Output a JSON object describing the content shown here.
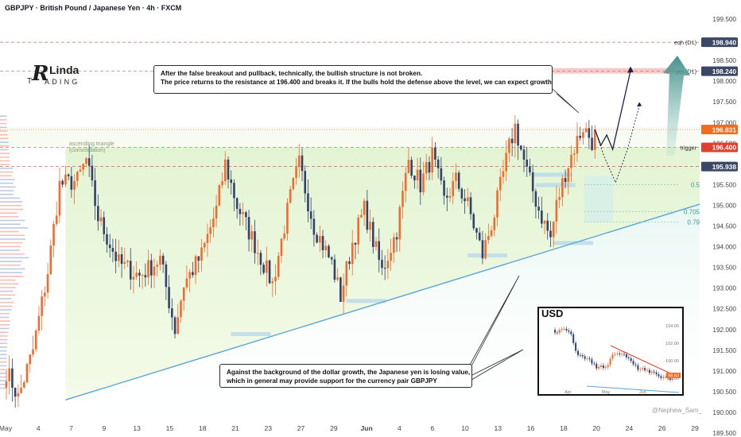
{
  "header": {
    "title": "GBPJPY · British Pound / Japanese Yen · 4h · FXCM"
  },
  "logo": {
    "mark": "R",
    "name_top": "Linda",
    "name_bottom": "ADING",
    "prefix": "T"
  },
  "annotations": {
    "top": {
      "line1": "After the false breakout and pullback, technically, the bullish structure is not broken.",
      "line2": "The price returns to the resistance at 196.400 and breaks it. If the bulls hold the defense above the level, we can expect growth"
    },
    "bottom": {
      "line1": "Against the background of the dollar growth, the Japanese yen is losing value,",
      "line2": "which in general may provide support for the currency pair GBPJPY"
    },
    "triangle_label": [
      "ascending triangle",
      "(consolidation)"
    ]
  },
  "inset": {
    "title": "USD",
    "x_labels": [
      "Apr",
      "May",
      "Jun"
    ],
    "y_labels": [
      "104.00",
      "102.00",
      "100.00",
      "98.00"
    ],
    "last_badge": "98.62"
  },
  "watermark": "@Nephew_Sam_",
  "colors": {
    "up": "#f06b2f",
    "down": "#34416b",
    "trendline": "#58a6d8",
    "triangle_fill": "#eaf6d6",
    "dashed": "#b06a5c",
    "badge_dark": "#3b4865",
    "badge_orange": "#f26b21",
    "badge_red": "#e0402f",
    "arrow": "#1a2340"
  },
  "chart_data": {
    "type": "candlestick",
    "symbol": "GBPJPY",
    "timeframe": "4h",
    "y_axis": {
      "min": 189.5,
      "max": 199.5,
      "ticks": [
        189.5,
        190.0,
        190.5,
        191.0,
        191.5,
        192.0,
        192.5,
        193.0,
        193.5,
        194.0,
        194.5,
        195.0,
        195.5,
        196.0,
        196.5,
        197.0,
        197.5,
        198.0,
        198.5,
        199.0,
        199.5
      ],
      "tick_labels": [
        "189.500",
        "190.000",
        "190.500",
        "191.000",
        "191.500",
        "192.000",
        "192.500",
        "193.000",
        "193.500",
        "194.000",
        "194.500",
        "195.000",
        "195.500",
        "196.000",
        "196.500",
        "197.000",
        "197.500",
        "198.000",
        "198.500",
        "199.000",
        "199.500"
      ]
    },
    "x_axis": {
      "labels": [
        "May",
        "4",
        "7",
        "9",
        "13",
        "15",
        "18",
        "21",
        "23",
        "27",
        "29",
        "Jun",
        "4",
        "6",
        "10",
        "13",
        "16",
        "18",
        "20",
        "24",
        "26",
        "29"
      ]
    },
    "levels": [
      {
        "label": "eqh (D1)",
        "value": 198.94,
        "badge": "198.940",
        "style": "dashed"
      },
      {
        "label": "poi (D1)",
        "value": 198.24,
        "badge": "198.240",
        "style": "dashed"
      },
      {
        "label": "",
        "value": 196.831,
        "badge": "196.831",
        "style": "current"
      },
      {
        "label": "trigger",
        "value": 196.4,
        "badge": "196.400",
        "style": "dashed"
      },
      {
        "label": "",
        "value": 195.938,
        "badge": "195.938",
        "style": "dashed"
      }
    ],
    "fib_levels": [
      {
        "label": "0.5",
        "value": 195.5
      },
      {
        "label": "0.705",
        "value": 194.85
      },
      {
        "label": "0.79",
        "value": 194.6
      }
    ],
    "pivots": [
      {
        "d": 0,
        "p": 191.0
      },
      {
        "d": 2,
        "p": 190.7
      },
      {
        "d": 4,
        "p": 190.35
      },
      {
        "d": 9,
        "p": 191.5
      },
      {
        "d": 14,
        "p": 193.4
      },
      {
        "d": 18,
        "p": 195.5
      },
      {
        "d": 24,
        "p": 195.6
      },
      {
        "d": 27,
        "p": 196.1
      },
      {
        "d": 31,
        "p": 194.7
      },
      {
        "d": 38,
        "p": 193.6
      },
      {
        "d": 45,
        "p": 193.3
      },
      {
        "d": 52,
        "p": 193.7
      },
      {
        "d": 57,
        "p": 192.0
      },
      {
        "d": 60,
        "p": 193.1
      },
      {
        "d": 66,
        "p": 193.8
      },
      {
        "d": 71,
        "p": 194.9
      },
      {
        "d": 74,
        "p": 196.0
      },
      {
        "d": 78,
        "p": 195.0
      },
      {
        "d": 85,
        "p": 193.9
      },
      {
        "d": 90,
        "p": 193.1
      },
      {
        "d": 96,
        "p": 195.2
      },
      {
        "d": 99,
        "p": 196.0
      },
      {
        "d": 104,
        "p": 194.5
      },
      {
        "d": 110,
        "p": 193.6
      },
      {
        "d": 113,
        "p": 192.8
      },
      {
        "d": 117,
        "p": 194.1
      },
      {
        "d": 121,
        "p": 194.9
      },
      {
        "d": 127,
        "p": 193.4
      },
      {
        "d": 132,
        "p": 194.4
      },
      {
        "d": 136,
        "p": 196.1
      },
      {
        "d": 140,
        "p": 195.5
      },
      {
        "d": 144,
        "p": 196.2
      },
      {
        "d": 148,
        "p": 195.1
      },
      {
        "d": 152,
        "p": 195.6
      },
      {
        "d": 156,
        "p": 195.0
      },
      {
        "d": 161,
        "p": 193.8
      },
      {
        "d": 165,
        "p": 194.8
      },
      {
        "d": 170,
        "p": 196.4
      },
      {
        "d": 172,
        "p": 196.9
      },
      {
        "d": 176,
        "p": 195.8
      },
      {
        "d": 180,
        "p": 194.9
      },
      {
        "d": 184,
        "p": 194.2
      },
      {
        "d": 186,
        "p": 195.0
      },
      {
        "d": 189,
        "p": 195.8
      },
      {
        "d": 192,
        "p": 196.4
      },
      {
        "d": 195,
        "p": 196.9
      },
      {
        "d": 198,
        "p": 196.55
      },
      {
        "d": 199,
        "p": 196.83
      }
    ],
    "projection": {
      "main": [
        {
          "d": 199,
          "p": 196.83
        },
        {
          "d": 201,
          "p": 196.45
        },
        {
          "d": 203,
          "p": 196.7
        },
        {
          "d": 205,
          "p": 196.35
        },
        {
          "d": 211,
          "p": 198.24
        }
      ],
      "alt": [
        {
          "d": 199,
          "p": 196.83
        },
        {
          "d": 202,
          "p": 196.2
        },
        {
          "d": 206,
          "p": 195.55
        },
        {
          "d": 210,
          "p": 196.35
        },
        {
          "d": 214,
          "p": 197.4
        }
      ]
    }
  }
}
